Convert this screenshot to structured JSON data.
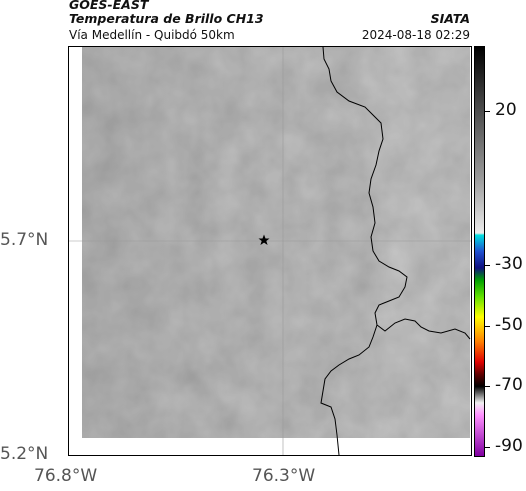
{
  "header": {
    "title_line1": "GOES-EAST",
    "title_line2": "Temperatura de Brillo CH13",
    "subtitle": "Vía Medellín - Quibdó 50km",
    "brand": "SIATA",
    "timestamp": "2024-08-18 02:29"
  },
  "map": {
    "marker": "star-icon",
    "lat_labels": [
      "5.7°N",
      "5.2°N"
    ],
    "lon_labels": [
      "76.8°W",
      "76.3°W"
    ]
  },
  "colorbar": {
    "labels": [
      "20",
      "-30",
      "-50",
      "-70",
      "-90"
    ]
  }
}
